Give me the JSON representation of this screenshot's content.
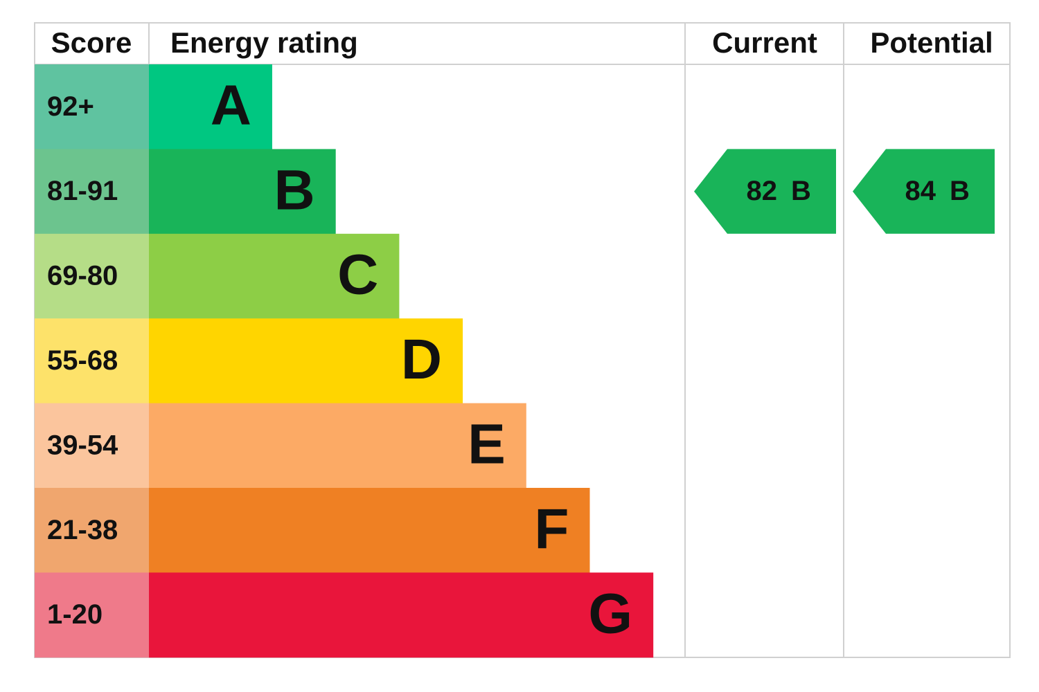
{
  "header": {
    "score": "Score",
    "rating": "Energy rating",
    "current": "Current",
    "potential": "Potential"
  },
  "rows": [
    {
      "score": "92+",
      "band": "A",
      "score_color": "#5fc3a0",
      "color": "#00c781"
    },
    {
      "score": "81-91",
      "band": "B",
      "score_color": "#6cc48e",
      "color": "#19b459"
    },
    {
      "score": "69-80",
      "band": "C",
      "score_color": "#b5dd87",
      "color": "#8dce46"
    },
    {
      "score": "55-68",
      "band": "D",
      "score_color": "#fde26a",
      "color": "#ffd500"
    },
    {
      "score": "39-54",
      "band": "E",
      "score_color": "#fbc59d",
      "color": "#fcaa65"
    },
    {
      "score": "21-38",
      "band": "F",
      "score_color": "#f0a66e",
      "color": "#ef8023"
    },
    {
      "score": "1-20",
      "band": "G",
      "score_color": "#ef7a8a",
      "color": "#e9153b"
    }
  ],
  "current": {
    "score": 82,
    "band": "B"
  },
  "potential": {
    "score": 84,
    "band": "B"
  }
}
